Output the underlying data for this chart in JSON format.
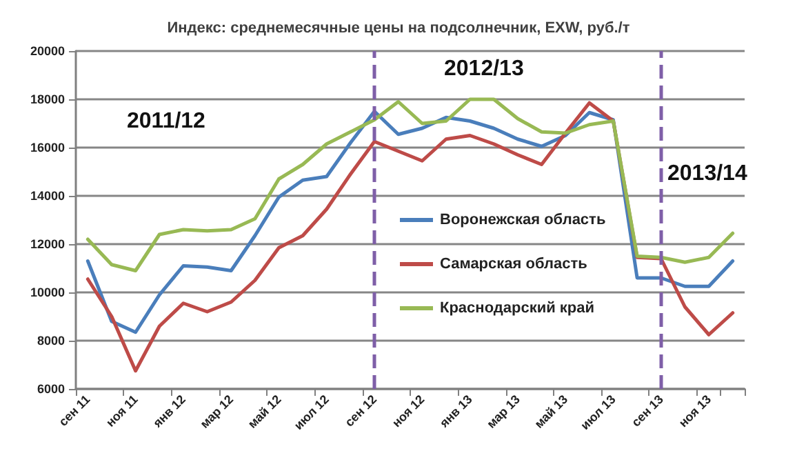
{
  "chart_data": {
    "type": "line",
    "title": "Индекс: среднемесячные цены на подсолнечник, EXW, руб./т",
    "categories": [
      "сен 11",
      null,
      "ноя 11",
      null,
      "янв 12",
      null,
      "мар 12",
      null,
      "май 12",
      null,
      "июл 12",
      null,
      "сен 12",
      null,
      "ноя 12",
      null,
      "янв 13",
      null,
      "мар 13",
      null,
      "май 13",
      null,
      "июл 13",
      null,
      "сен 13",
      null,
      "ноя 13",
      null
    ],
    "series": [
      {
        "name": "Воронежская область",
        "color": "#4a7ebb",
        "values": [
          11300,
          8800,
          8350,
          9900,
          11100,
          11050,
          10900,
          12350,
          13950,
          14650,
          14800,
          16200,
          17500,
          16550,
          16800,
          17250,
          17100,
          16800,
          16350,
          16050,
          16500,
          17450,
          17150,
          10600,
          10600,
          10250,
          10250,
          11300
        ]
      },
      {
        "name": "Самарская область",
        "color": "#be4b48",
        "values": [
          10550,
          9000,
          6750,
          8600,
          9550,
          9200,
          9600,
          10500,
          11850,
          12350,
          13450,
          14900,
          16250,
          15850,
          15450,
          16350,
          16500,
          16150,
          15700,
          15300,
          16600,
          17850,
          17100,
          11450,
          11400,
          9400,
          8250,
          9150
        ]
      },
      {
        "name": "Краснодарский край",
        "color": "#98b954",
        "values": [
          12200,
          11150,
          10900,
          12400,
          12600,
          12550,
          12600,
          13050,
          14700,
          15300,
          16150,
          16650,
          17150,
          17900,
          17000,
          17100,
          18000,
          18000,
          17200,
          16650,
          16600,
          16950,
          17100,
          11500,
          11450,
          11250,
          11450,
          12450
        ]
      }
    ],
    "ylim": [
      6000,
      20000
    ],
    "yticks": [
      6000,
      8000,
      10000,
      12000,
      14000,
      16000,
      18000,
      20000
    ],
    "grid": "y",
    "legend": "right",
    "marker": "none",
    "line_style": "solid",
    "ref_lines": [
      {
        "axis": "x",
        "value": "сен 12",
        "color": "#7f5fa8",
        "line_style": "dashed"
      },
      {
        "axis": "x",
        "value": "сен 13",
        "color": "#7f5fa8",
        "line_style": "dashed"
      }
    ],
    "annotations": [
      "2011/12",
      "2012/13",
      "2013/14"
    ]
  }
}
